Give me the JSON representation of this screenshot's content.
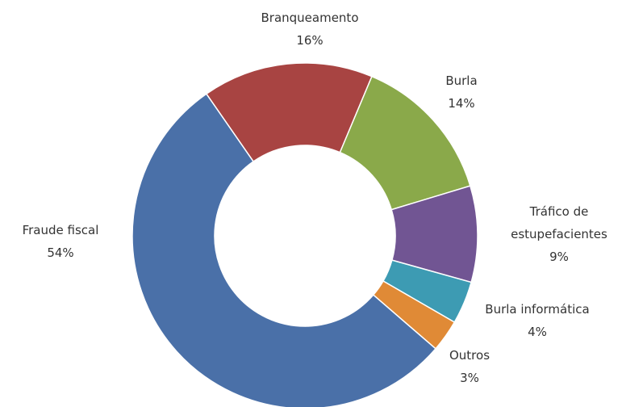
{
  "chart_data": {
    "type": "donut",
    "categories": [
      "Branqueamento",
      "Burla",
      "Tráfico de estupefacientes",
      "Burla informática",
      "Outros",
      "Fraude fiscal"
    ],
    "values": [
      16,
      14,
      9,
      4,
      3,
      54
    ],
    "value_labels": [
      "16%",
      "14%",
      "9%",
      "4%",
      "3%",
      "54%"
    ],
    "colors": [
      "#a84442",
      "#8aa94a",
      "#715593",
      "#3d9bb3",
      "#e08a36",
      "#4a70a8"
    ]
  }
}
